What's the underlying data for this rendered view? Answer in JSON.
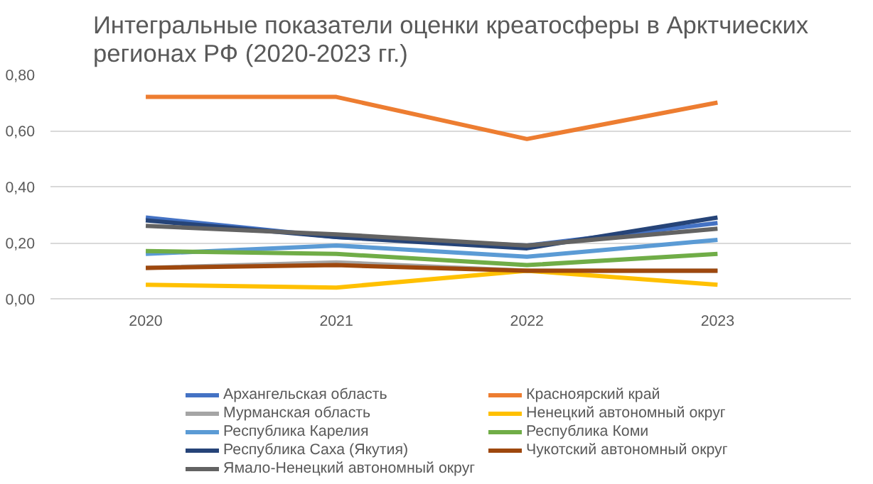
{
  "chart_data": {
    "type": "line",
    "title": "Интегральные показатели оценки креатосферы в Арктчиеских регионах РФ (2020-2023 гг.)",
    "categories": [
      "2020",
      "2021",
      "2022",
      "2023"
    ],
    "series": [
      {
        "name": "Архангельская область",
        "color": "#4472c4",
        "values": [
          0.29,
          0.22,
          0.19,
          0.27
        ]
      },
      {
        "name": "Красноярский край",
        "color": "#ed7d31",
        "values": [
          0.72,
          0.72,
          0.57,
          0.7
        ]
      },
      {
        "name": "Мурманская область",
        "color": "#a5a5a5",
        "values": [
          0.11,
          0.13,
          0.1,
          0.1
        ]
      },
      {
        "name": "Ненецкий автономный округ",
        "color": "#ffc000",
        "values": [
          0.05,
          0.04,
          0.1,
          0.05
        ]
      },
      {
        "name": "Республика Карелия",
        "color": "#5b9bd5",
        "values": [
          0.16,
          0.19,
          0.15,
          0.21
        ]
      },
      {
        "name": "Республика Коми",
        "color": "#70ad47",
        "values": [
          0.17,
          0.16,
          0.12,
          0.16
        ]
      },
      {
        "name": "Республика Саха (Якутия)",
        "color": "#264478",
        "values": [
          0.28,
          0.22,
          0.18,
          0.29
        ]
      },
      {
        "name": "Чукотский автономный округ",
        "color": "#9e480e",
        "values": [
          0.11,
          0.12,
          0.1,
          0.1
        ]
      },
      {
        "name": "Ямало-Ненецкий автономный округ",
        "color": "#636363",
        "values": [
          0.26,
          0.23,
          0.19,
          0.25
        ]
      }
    ],
    "ylim": [
      0,
      0.8
    ],
    "yticks": [
      {
        "value": 0,
        "label": "0,00"
      },
      {
        "value": 0.2,
        "label": "0,20"
      },
      {
        "value": 0.4,
        "label": "0,40"
      },
      {
        "value": 0.6,
        "label": "0,60"
      },
      {
        "value": 0.8,
        "label": "0,80"
      }
    ],
    "grid": "y",
    "legend": "bottom",
    "marker": "none",
    "line_style": "solid"
  }
}
